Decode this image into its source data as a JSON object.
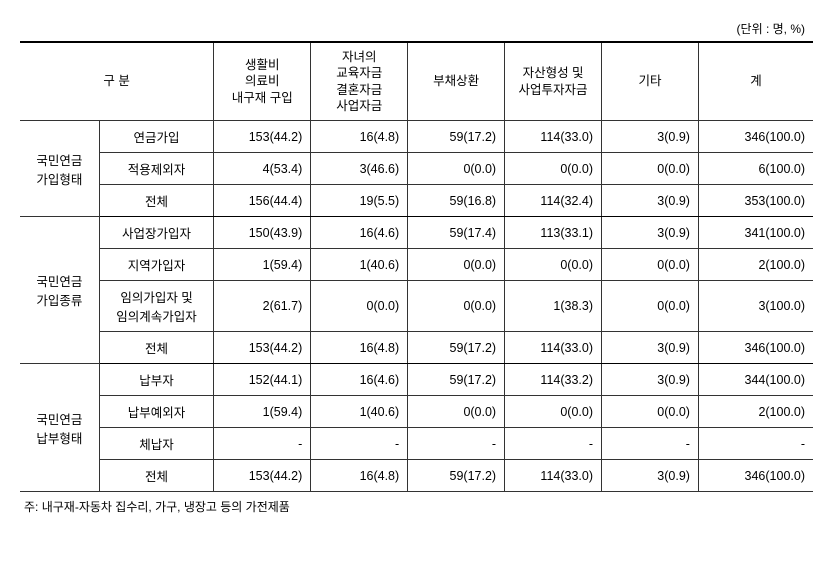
{
  "unit_label": "(단위 : 명, %)",
  "header": {
    "category": "구 분",
    "col1": "생활비\n의료비\n내구재 구입",
    "col2": "자녀의\n교육자금\n결혼자금\n사업자금",
    "col3": "부채상환",
    "col4": "자산형성 및\n사업투자자금",
    "col5": "기타",
    "col6": "계"
  },
  "groups": [
    {
      "name": "국민연금\n가입형태",
      "rows": [
        {
          "label": "연금가입",
          "cells": [
            "153(44.2)",
            "16(4.8)",
            "59(17.2)",
            "114(33.0)",
            "3(0.9)",
            "346(100.0)"
          ]
        },
        {
          "label": "적용제외자",
          "cells": [
            "4(53.4)",
            "3(46.6)",
            "0(0.0)",
            "0(0.0)",
            "0(0.0)",
            "6(100.0)"
          ]
        },
        {
          "label": "전체",
          "cells": [
            "156(44.4)",
            "19(5.5)",
            "59(16.8)",
            "114(32.4)",
            "3(0.9)",
            "353(100.0)"
          ]
        }
      ]
    },
    {
      "name": "국민연금\n가입종류",
      "rows": [
        {
          "label": "사업장가입자",
          "cells": [
            "150(43.9)",
            "16(4.6)",
            "59(17.4)",
            "113(33.1)",
            "3(0.9)",
            "341(100.0)"
          ]
        },
        {
          "label": "지역가입자",
          "cells": [
            "1(59.4)",
            "1(40.6)",
            "0(0.0)",
            "0(0.0)",
            "0(0.0)",
            "2(100.0)"
          ]
        },
        {
          "label": "임의가입자 및\n임의계속가입자",
          "cells": [
            "2(61.7)",
            "0(0.0)",
            "0(0.0)",
            "1(38.3)",
            "0(0.0)",
            "3(100.0)"
          ]
        },
        {
          "label": "전체",
          "cells": [
            "153(44.2)",
            "16(4.8)",
            "59(17.2)",
            "114(33.0)",
            "3(0.9)",
            "346(100.0)"
          ]
        }
      ]
    },
    {
      "name": "국민연금\n납부형태",
      "rows": [
        {
          "label": "납부자",
          "cells": [
            "152(44.1)",
            "16(4.6)",
            "59(17.2)",
            "114(33.2)",
            "3(0.9)",
            "344(100.0)"
          ]
        },
        {
          "label": "납부예외자",
          "cells": [
            "1(59.4)",
            "1(40.6)",
            "0(0.0)",
            "0(0.0)",
            "0(0.0)",
            "2(100.0)"
          ]
        },
        {
          "label": "체납자",
          "cells": [
            "-",
            "-",
            "-",
            "-",
            "-",
            "-"
          ]
        },
        {
          "label": "전체",
          "cells": [
            "153(44.2)",
            "16(4.8)",
            "59(17.2)",
            "114(33.0)",
            "3(0.9)",
            "346(100.0)"
          ]
        }
      ]
    }
  ],
  "footnote": "주: 내구재-자동차 집수리, 가구, 냉장고 등의 가전제품"
}
